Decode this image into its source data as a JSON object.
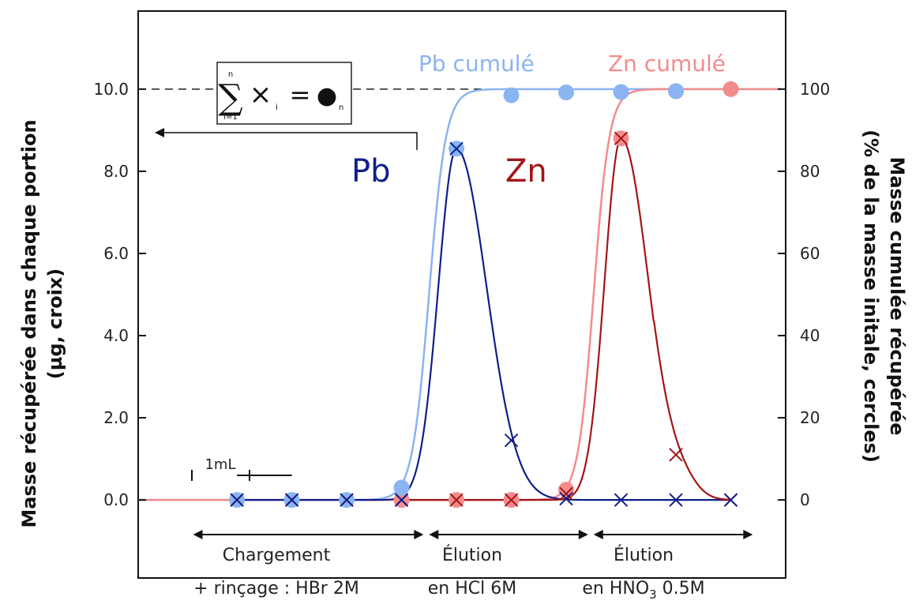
{
  "colors": {
    "pb_dark": "#0e1f8a",
    "pb_light": "#8ab4f2",
    "zn_dark": "#a31515",
    "zn_light": "#f28c8c"
  },
  "chart_data": {
    "type": "line",
    "x_unit": "mL",
    "xlim": [
      -0.8,
      11.0
    ],
    "ylim_left": [
      -1.9,
      11.9
    ],
    "ylim_right": [
      -19,
      119
    ],
    "ylabel_left_line1": "Masse récupérée dans chaque portion",
    "ylabel_left_line2": "(µg, croix)",
    "ylabel_right_line1": "Masse cumulée récupérée",
    "ylabel_right_line2": "(% de la masse initale, cercles)",
    "yticks_left": [
      "0.0",
      "2.0",
      "4.0",
      "6.0",
      "8.0",
      "10.0"
    ],
    "yticks_left_values": [
      0,
      2,
      4,
      6,
      8,
      10
    ],
    "yticks_right": [
      "0",
      "20",
      "40",
      "60",
      "80",
      "100"
    ],
    "yticks_right_values": [
      0,
      20,
      40,
      60,
      80,
      100
    ],
    "reference_line_y": 10.0,
    "series": [
      {
        "name": "Pb",
        "kind": "portion",
        "marker": "cross",
        "x": [
          1,
          2,
          3,
          4,
          5,
          6,
          7,
          8,
          9,
          10
        ],
        "y": [
          0.0,
          0.0,
          0.0,
          0.0,
          8.55,
          1.45,
          0.03,
          0.0,
          0.0,
          0.0
        ]
      },
      {
        "name": "Zn",
        "kind": "portion",
        "marker": "cross",
        "x": [
          1,
          2,
          3,
          4,
          5,
          6,
          7,
          8,
          9,
          10
        ],
        "y": [
          0.0,
          0.0,
          0.0,
          0.0,
          0.0,
          0.0,
          0.15,
          8.8,
          1.1,
          0.0
        ]
      },
      {
        "name": "Pb cumulé",
        "kind": "cumulative",
        "marker": "circle",
        "x": [
          1,
          2,
          3,
          4,
          5,
          6,
          7,
          8,
          9
        ],
        "y": [
          0,
          0,
          0,
          3,
          85.5,
          98.5,
          99.2,
          99.3,
          99.5
        ]
      },
      {
        "name": "Zn cumulé",
        "kind": "cumulative",
        "marker": "circle",
        "x": [
          4,
          5,
          6,
          7,
          8,
          9,
          10
        ],
        "y": [
          0,
          0,
          0,
          2.5,
          88,
          99.5,
          100
        ]
      }
    ],
    "phases": [
      {
        "line1": "Chargement",
        "line2": "+ rinçage : HBr 2M",
        "x_from": 0.2,
        "x_to": 4.4
      },
      {
        "line1": "Élution",
        "line2": "en HCl 6M",
        "x_from": 4.5,
        "x_to": 7.4
      },
      {
        "line1": "Élution",
        "line2_main": "en HNO",
        "line2_sub": "3",
        "line2_tail": " 0.5M",
        "x_from": 7.5,
        "x_to": 10.4
      }
    ],
    "scale_bar": {
      "label": "1mL",
      "x_from": 1,
      "x_to": 2
    },
    "formula": {
      "n_top": "n",
      "sum_sign": "∑",
      "i_bottom": "i=1",
      "term": "×",
      "term_sub": "i",
      "equals": "=",
      "result": "●",
      "result_sub": "n"
    }
  }
}
